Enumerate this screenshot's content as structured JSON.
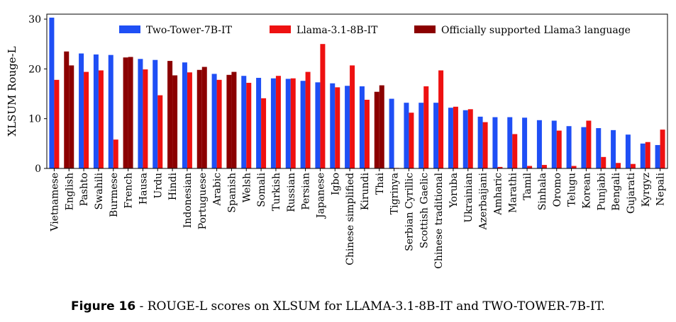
{
  "chart_data": {
    "type": "bar",
    "title": "",
    "xlabel": "",
    "ylabel": "XLSUM Rouge-L",
    "ylim": [
      0,
      31
    ],
    "yticks": [
      0,
      10,
      20,
      30
    ],
    "grid": false,
    "legend_position": "top-right",
    "colors": {
      "Two-Tower-7B-IT": "#1f4ff5",
      "Llama-3.1-8B-IT": "#ee1111",
      "Officially supported Llama3 language": "#8b0000"
    },
    "categories": [
      "Vietnamese",
      "English",
      "Pashto",
      "Swahili",
      "Burmese",
      "French",
      "Hausa",
      "Urdu",
      "Hindi",
      "Indonesian",
      "Portuguese",
      "Arabic",
      "Spanish",
      "Welsh",
      "Somali",
      "Turkish",
      "Russian",
      "Persian",
      "Japanese",
      "Igbo",
      "Chinese simplified",
      "Kirundi",
      "Thai",
      "Tigrinya",
      "Serbian Cyrillic",
      "Scottish Gaelic",
      "Chinese traditional",
      "Yoruba",
      "Ukrainian",
      "Azerbaijani",
      "Amharic",
      "Marathi",
      "Tamil",
      "Sinhala",
      "Oromo",
      "Telugu",
      "Korean",
      "Punjabi",
      "Bengali",
      "Gujarati",
      "Kyrgyz",
      "Nepali"
    ],
    "officially_supported": [
      false,
      true,
      false,
      false,
      false,
      true,
      false,
      false,
      true,
      false,
      true,
      false,
      true,
      false,
      false,
      false,
      false,
      false,
      false,
      false,
      false,
      false,
      true,
      false,
      false,
      false,
      false,
      false,
      false,
      false,
      false,
      false,
      false,
      false,
      false,
      false,
      false,
      false,
      false,
      false,
      false,
      false
    ],
    "series": [
      {
        "name": "Two-Tower-7B-IT",
        "values": [
          30.3,
          23.5,
          23.1,
          22.9,
          22.8,
          22.3,
          22.0,
          21.8,
          21.6,
          21.3,
          19.8,
          19.0,
          18.8,
          18.6,
          18.2,
          18.1,
          18.0,
          17.6,
          17.3,
          17.1,
          16.6,
          16.5,
          15.4,
          14.0,
          13.2,
          13.2,
          13.2,
          12.2,
          11.7,
          10.4,
          10.3,
          10.3,
          10.2,
          9.7,
          9.6,
          8.5,
          8.3,
          8.1,
          7.7,
          6.8,
          5.0,
          4.7
        ]
      },
      {
        "name": "Llama-3.1-8B-IT",
        "values": [
          17.8,
          20.7,
          19.4,
          19.7,
          5.8,
          22.4,
          19.9,
          14.7,
          18.7,
          19.3,
          20.4,
          17.8,
          19.4,
          17.2,
          14.1,
          18.6,
          18.1,
          19.4,
          25.0,
          16.3,
          20.7,
          13.8,
          16.7,
          0.1,
          11.2,
          16.5,
          19.7,
          12.4,
          11.9,
          9.3,
          0.3,
          6.9,
          0.5,
          0.7,
          7.6,
          0.5,
          9.6,
          2.3,
          1.1,
          0.9,
          5.3,
          7.8
        ]
      }
    ]
  },
  "caption": {
    "figure_label": "Figure 16",
    "text": " - ROUGE-L scores on XLSUM for LLAMA-3.1-8B-IT and TWO-TOWER-7B-IT."
  }
}
